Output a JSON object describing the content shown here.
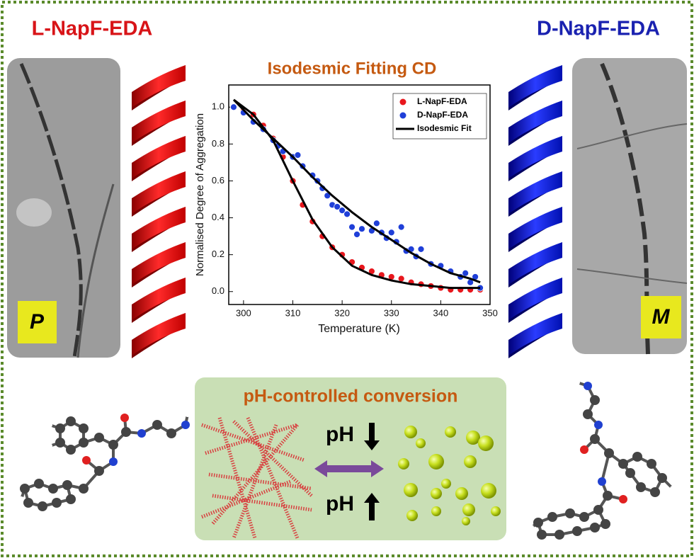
{
  "header": {
    "left": "L-NapF-EDA",
    "right": "D-NapF-EDA"
  },
  "helicity": {
    "left": "P",
    "right": "M"
  },
  "conversion": {
    "title": "pH-controlled conversion",
    "upper": "pH",
    "lower": "pH"
  },
  "chart_data": {
    "type": "scatter",
    "title": "Isodesmic Fitting CD",
    "x_label": "Temperature (K)",
    "y_label": "Normalised Degree of Aggregation",
    "xlim": [
      297,
      350
    ],
    "xticks": [
      300,
      310,
      320,
      330,
      340,
      350
    ],
    "ylim": [
      -0.07,
      1.12
    ],
    "yticks": [
      {
        "value": 0,
        "label": "0.0"
      },
      {
        "value": 0.2,
        "label": "0.2"
      },
      {
        "value": 0.4,
        "label": "0.4"
      },
      {
        "value": 0.6,
        "label": "0.6"
      },
      {
        "value": 0.8,
        "label": "0.8"
      },
      {
        "value": 1,
        "label": "1.0"
      }
    ],
    "legend": "upper right",
    "series": [
      {
        "name": "L-NapF-EDA",
        "color": "#e8171d",
        "kind": "points",
        "x": [
          298,
          300,
          302,
          304,
          306,
          308,
          310,
          312,
          314,
          316,
          318,
          320,
          322,
          324,
          326,
          328,
          330,
          332,
          334,
          336,
          338,
          340,
          342,
          344,
          346,
          348
        ],
        "values": [
          1.0,
          0.98,
          0.96,
          0.9,
          0.83,
          0.73,
          0.6,
          0.47,
          0.38,
          0.3,
          0.24,
          0.2,
          0.16,
          0.13,
          0.11,
          0.09,
          0.08,
          0.07,
          0.05,
          0.04,
          0.03,
          0.02,
          0.01,
          0.01,
          0.01,
          0.01
        ]
      },
      {
        "name": "D-NapF-EDA",
        "color": "#1f3fd8",
        "kind": "points",
        "x": [
          298,
          300,
          302,
          304,
          306,
          307,
          308,
          310,
          311,
          312,
          314,
          315,
          316,
          317,
          318,
          319,
          320,
          321,
          322,
          323,
          324,
          326,
          327,
          328,
          329,
          330,
          331,
          332,
          333,
          334,
          335,
          336,
          338,
          340,
          342,
          344,
          345,
          346,
          347,
          348
        ],
        "values": [
          1.0,
          0.97,
          0.92,
          0.88,
          0.82,
          0.79,
          0.76,
          0.73,
          0.74,
          0.68,
          0.63,
          0.6,
          0.56,
          0.52,
          0.47,
          0.46,
          0.44,
          0.42,
          0.35,
          0.31,
          0.34,
          0.33,
          0.37,
          0.32,
          0.29,
          0.32,
          0.27,
          0.35,
          0.22,
          0.23,
          0.19,
          0.23,
          0.15,
          0.14,
          0.11,
          0.08,
          0.1,
          0.05,
          0.08,
          0.02
        ]
      },
      {
        "name": "Isodesmic Fit",
        "color": "#000000",
        "kind": "line",
        "x": [
          298,
          302,
          306,
          310,
          314,
          318,
          322,
          326,
          330,
          334,
          338,
          342,
          346,
          348,
          null,
          298,
          302,
          306,
          310,
          314,
          318,
          322,
          326,
          330,
          334,
          338,
          342,
          346,
          348
        ],
        "values": [
          1.04,
          0.96,
          0.82,
          0.6,
          0.39,
          0.24,
          0.14,
          0.09,
          0.06,
          0.04,
          0.03,
          0.02,
          0.02,
          0.02,
          null,
          1.04,
          0.93,
          0.83,
          0.73,
          0.62,
          0.52,
          0.43,
          0.35,
          0.28,
          0.21,
          0.15,
          0.1,
          0.07,
          0.05
        ]
      }
    ]
  }
}
